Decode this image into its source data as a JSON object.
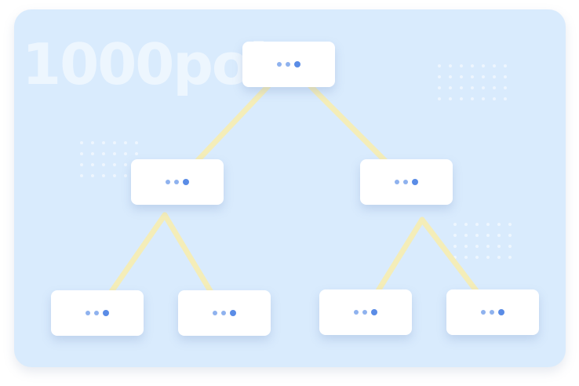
{
  "watermark": {
    "text": "1000point"
  },
  "colors": {
    "background": "#d9ebfd",
    "node": "#ffffff",
    "link": "#f4edb8",
    "node_dot": "#5a8ce6"
  },
  "tree": {
    "nodes": [
      {
        "id": "root",
        "level": 0
      },
      {
        "id": "left",
        "level": 1,
        "parent": "root"
      },
      {
        "id": "right",
        "level": 1,
        "parent": "root"
      },
      {
        "id": "left-left",
        "level": 2,
        "parent": "left"
      },
      {
        "id": "left-right",
        "level": 2,
        "parent": "left"
      },
      {
        "id": "right-left",
        "level": 2,
        "parent": "right"
      },
      {
        "id": "right-right",
        "level": 2,
        "parent": "right"
      }
    ]
  }
}
